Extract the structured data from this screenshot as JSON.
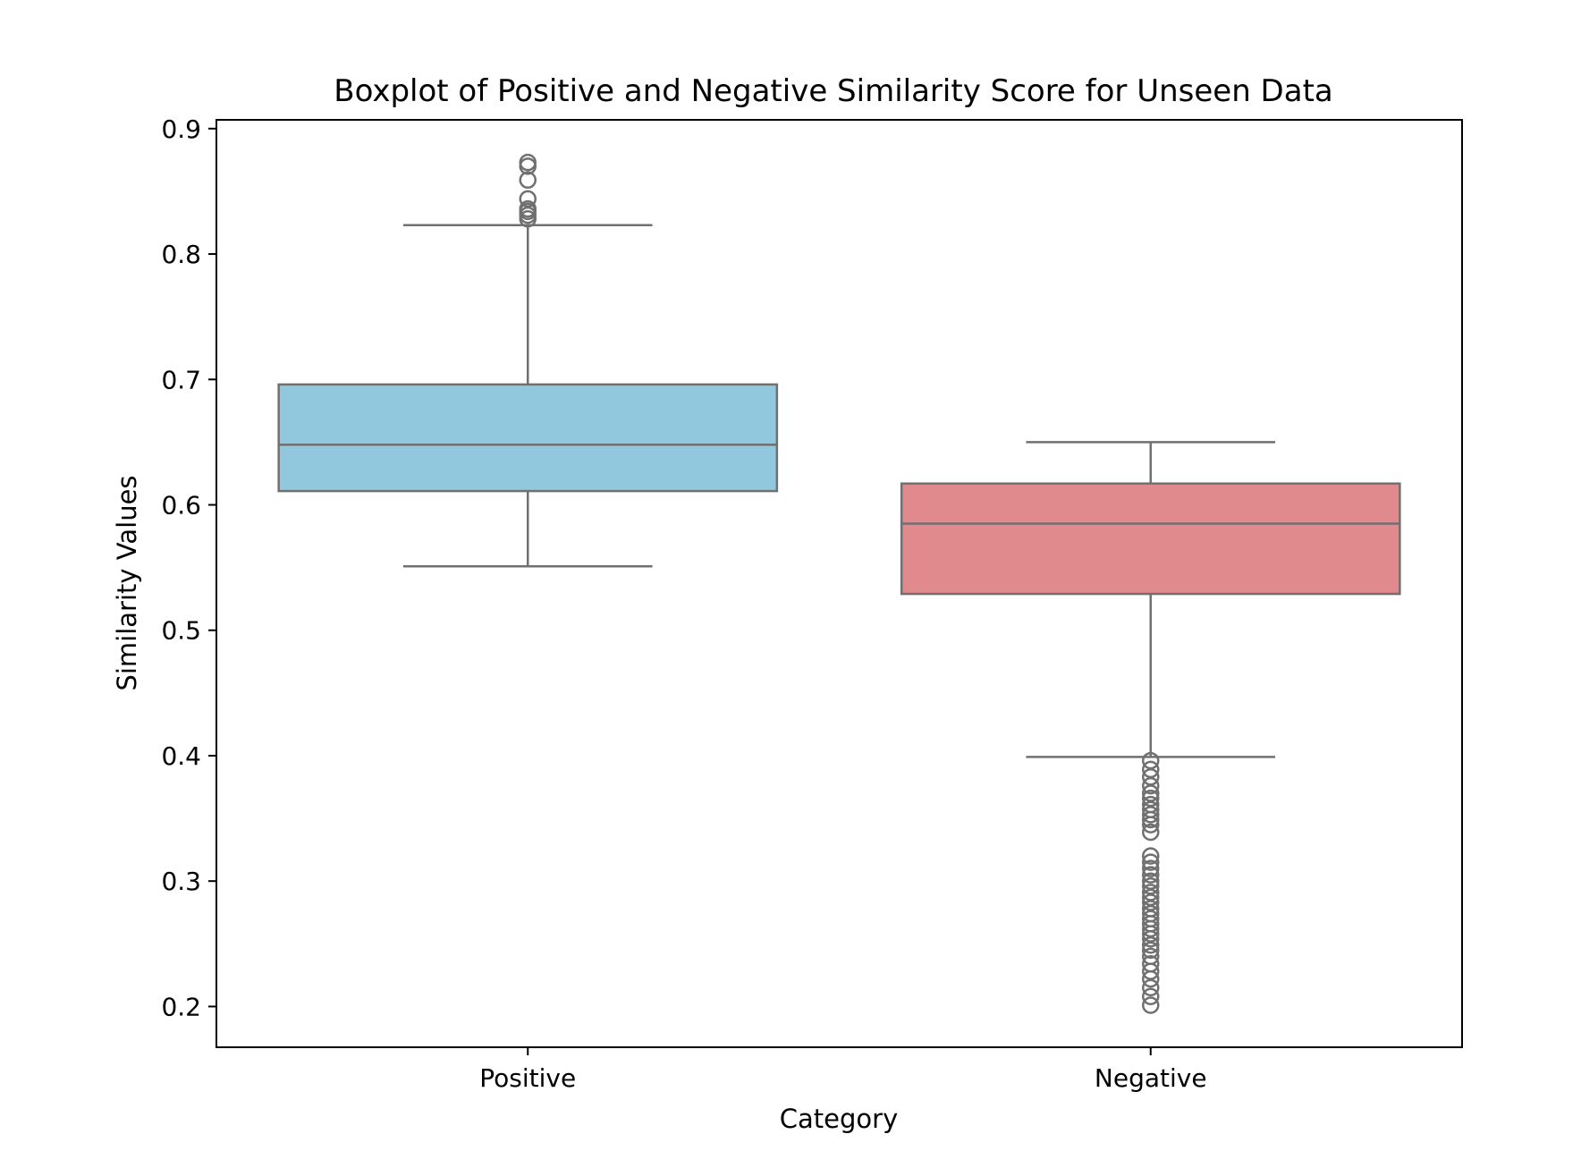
{
  "chart_data": {
    "type": "boxplot",
    "title": "Boxplot of Positive and Negative Similarity Score for Unseen Data",
    "xlabel": "Category",
    "ylabel": "Similarity Values",
    "ylim": [
      0.1675,
      0.907
    ],
    "yticks": [
      0.2,
      0.3,
      0.4,
      0.5,
      0.6,
      0.7,
      0.8,
      0.9
    ],
    "ytick_labels": [
      "0.2",
      "0.3",
      "0.4",
      "0.5",
      "0.6",
      "0.7",
      "0.8",
      "0.9"
    ],
    "grid": false,
    "series": [
      {
        "name": "Positive",
        "color": "#92c8de",
        "q1": 0.611,
        "median": 0.648,
        "q3": 0.696,
        "whisker_low": 0.551,
        "whisker_high": 0.823,
        "outliers": [
          0.828,
          0.831,
          0.834,
          0.836,
          0.844,
          0.859,
          0.87,
          0.873
        ]
      },
      {
        "name": "Negative",
        "color": "#e08a8d",
        "q1": 0.529,
        "median": 0.585,
        "q3": 0.617,
        "whisker_low": 0.399,
        "whisker_high": 0.65,
        "outliers": [
          0.396,
          0.389,
          0.383,
          0.376,
          0.37,
          0.366,
          0.361,
          0.357,
          0.353,
          0.349,
          0.345,
          0.339,
          0.32,
          0.315,
          0.31,
          0.305,
          0.3,
          0.296,
          0.291,
          0.287,
          0.283,
          0.278,
          0.274,
          0.27,
          0.266,
          0.262,
          0.258,
          0.254,
          0.249,
          0.245,
          0.24,
          0.234,
          0.228,
          0.222,
          0.215,
          0.208,
          0.201
        ]
      }
    ],
    "style": {
      "line_color": "#707070",
      "axis_color": "#000000"
    }
  }
}
